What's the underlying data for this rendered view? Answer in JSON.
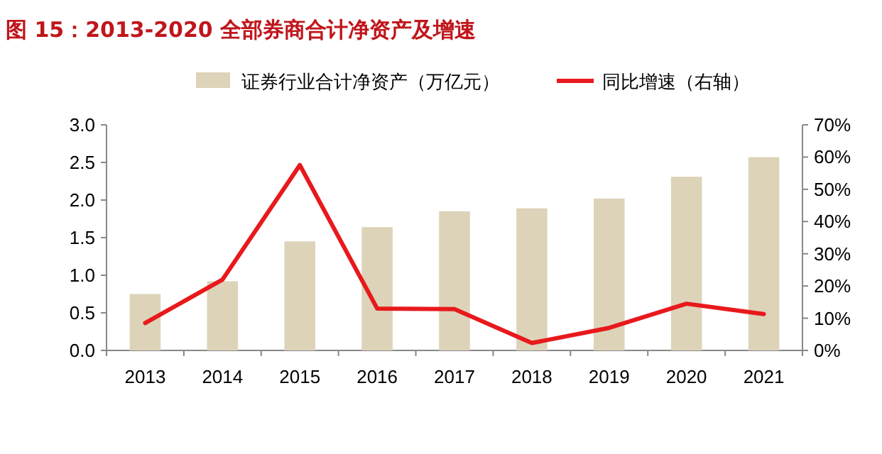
{
  "chart_data": {
    "type": "bar",
    "title": "图 15：2013-2020 全部券商合计净资产及增速",
    "categories": [
      "2013",
      "2014",
      "2015",
      "2016",
      "2017",
      "2018",
      "2019",
      "2020",
      "2021"
    ],
    "series": [
      {
        "name": "证券行业合计净资产（万亿元）",
        "color": "#ddd3b9",
        "values": [
          0.75,
          0.92,
          1.45,
          1.64,
          1.85,
          1.89,
          2.02,
          2.31,
          2.57
        ]
      },
      {
        "name": "同比增速（右轴）",
        "type": "line",
        "axis": "y2",
        "color": "#e8191c",
        "values": [
          8.5,
          22,
          57.5,
          13,
          12.8,
          2.3,
          7,
          14.5,
          11.3
        ]
      }
    ],
    "ylim": [
      0,
      3
    ],
    "yticks": [
      {
        "value": 0,
        "label": "0.0"
      },
      {
        "value": 0.5,
        "label": "0.5"
      },
      {
        "value": 1,
        "label": "1.0"
      },
      {
        "value": 1.5,
        "label": "1.5"
      },
      {
        "value": 2,
        "label": "2.0"
      },
      {
        "value": 2.5,
        "label": "2.5"
      },
      {
        "value": 3,
        "label": "3.0"
      }
    ],
    "y2lim": [
      0,
      70
    ],
    "y2ticks": [
      {
        "value": 0,
        "label": "0%"
      },
      {
        "value": 10,
        "label": "10%"
      },
      {
        "value": 20,
        "label": "20%"
      },
      {
        "value": 30,
        "label": "30%"
      },
      {
        "value": 40,
        "label": "40%"
      },
      {
        "value": 50,
        "label": "50%"
      },
      {
        "value": 60,
        "label": "60%"
      },
      {
        "value": 70,
        "label": "70%"
      }
    ],
    "legend": "top",
    "grid": false,
    "marker": "none"
  }
}
